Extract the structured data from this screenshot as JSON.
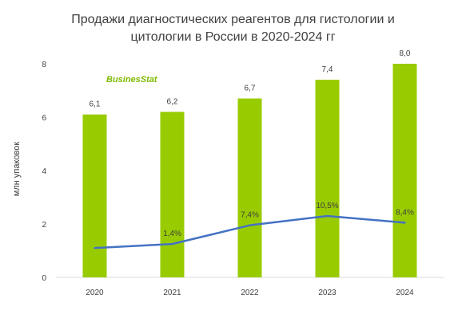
{
  "chart_data": {
    "type": "bar",
    "title_line1": "Продажи диагностических  реагентов для гистологии и",
    "title_line2": "цитологии в России в 2020-2024 гг",
    "ylabel": "млн упаковок",
    "ylim": [
      0,
      8
    ],
    "yticks": [
      "0",
      "2",
      "4",
      "6",
      "8"
    ],
    "categories": [
      "2020",
      "2021",
      "2022",
      "2023",
      "2024"
    ],
    "series": [
      {
        "type": "bar",
        "values": [
          6.1,
          6.2,
          6.7,
          7.4,
          8.0
        ],
        "labels": [
          "6,1",
          "6,2",
          "6,7",
          "7,4",
          "8,0"
        ],
        "color": "#99cc00"
      },
      {
        "type": "line",
        "values": [
          1.1,
          1.25,
          1.95,
          2.3,
          2.05
        ],
        "labels": [
          "",
          "1,4%",
          "7,4%",
          "10,5%",
          "8,4%"
        ],
        "color": "#4472c4"
      }
    ],
    "grid": false,
    "legend": "none"
  },
  "watermark": {
    "text_part1": "Busines",
    "text_part2": "Stat",
    "color": "#7fba00"
  }
}
